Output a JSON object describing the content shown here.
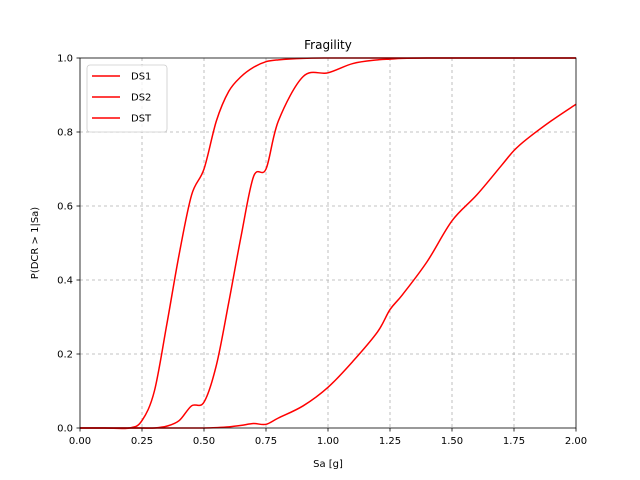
{
  "chart_data": {
    "type": "line",
    "title": "Fragility",
    "xlabel": "Sa [g]",
    "ylabel": "P(DCR > 1|Sa)",
    "xlim": [
      0.0,
      2.0
    ],
    "ylim": [
      0.0,
      1.0
    ],
    "x_ticks": [
      "0.00",
      "0.25",
      "0.50",
      "0.75",
      "1.00",
      "1.25",
      "1.50",
      "1.75",
      "2.00"
    ],
    "y_ticks": [
      "0.0",
      "0.2",
      "0.4",
      "0.6",
      "0.8",
      "1.0"
    ],
    "grid": true,
    "legend_position": "top-left",
    "series_color": "#ff0000",
    "x": [
      0.0,
      0.1,
      0.2,
      0.25,
      0.3,
      0.35,
      0.4,
      0.45,
      0.5,
      0.55,
      0.6,
      0.65,
      0.7,
      0.75,
      0.8,
      0.9,
      1.0,
      1.1,
      1.2,
      1.25,
      1.3,
      1.4,
      1.5,
      1.6,
      1.7,
      1.75,
      1.8,
      1.9,
      2.0
    ],
    "series": [
      {
        "name": "DS1",
        "values": [
          0.0,
          0.0,
          0.0,
          0.02,
          0.1,
          0.28,
          0.47,
          0.63,
          0.7,
          0.83,
          0.91,
          0.95,
          0.975,
          0.99,
          0.995,
          0.999,
          1.0,
          1.0,
          1.0,
          1.0,
          1.0,
          1.0,
          1.0,
          1.0,
          1.0,
          1.0,
          1.0,
          1.0,
          1.0
        ]
      },
      {
        "name": "DS2",
        "values": [
          0.0,
          0.0,
          0.0,
          0.0,
          0.0,
          0.005,
          0.02,
          0.06,
          0.07,
          0.17,
          0.34,
          0.52,
          0.68,
          0.7,
          0.83,
          0.95,
          0.96,
          0.985,
          0.995,
          0.997,
          0.999,
          1.0,
          1.0,
          1.0,
          1.0,
          1.0,
          1.0,
          1.0,
          1.0
        ]
      },
      {
        "name": "DST",
        "values": [
          0.0,
          0.0,
          0.0,
          0.0,
          0.0,
          0.0,
          0.0,
          0.0,
          0.0,
          0.001,
          0.003,
          0.007,
          0.012,
          0.01,
          0.027,
          0.06,
          0.11,
          0.18,
          0.26,
          0.32,
          0.36,
          0.45,
          0.56,
          0.63,
          0.71,
          0.75,
          0.78,
          0.83,
          0.875
        ]
      }
    ]
  }
}
